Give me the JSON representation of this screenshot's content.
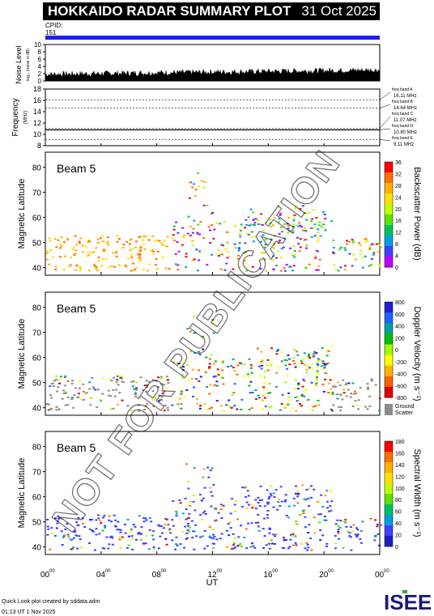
{
  "header": {
    "title": "HOKKAIDO RADAR SUMMARY PLOT",
    "date": "31 Oct 2025",
    "cpid_label": "CPID:",
    "cpid_value": "151"
  },
  "colors": {
    "cpid_bar": "#1f1ff0",
    "ground_scatter": "#8c8c8c",
    "watermark": "rgba(0,0,0,0.55)"
  },
  "noise_panel": {
    "ylabel": "Noise Level",
    "ysub": "log₁₀ (noise in dB)",
    "yticks": [
      "10",
      "8",
      "6",
      "4",
      "2",
      "0"
    ],
    "ylim": [
      0,
      10
    ]
  },
  "freq_panel": {
    "ylabel": "Frequency",
    "yunit": "(MHz)",
    "yticks": [
      "18",
      "16",
      "14",
      "12",
      "10",
      "8"
    ],
    "ylim": [
      8,
      18
    ],
    "bands": [
      {
        "label": "freq band A",
        "value": "16.11 MHz",
        "mhz": 16.11
      },
      {
        "label": "freq band B",
        "value": "14.64 MHz",
        "mhz": 14.64
      },
      {
        "label": "freq band C",
        "value": "11.07 MHz",
        "mhz": 11.07
      },
      {
        "label": "freq band D",
        "value": "10.80 MHz",
        "mhz": 10.8
      },
      {
        "label": "freq band E",
        "value": "9.11 MHz",
        "mhz": 9.11
      }
    ]
  },
  "panels": [
    {
      "beam_label": "Beam  5",
      "ylabel": "Magnetic Latitude",
      "yticks": [
        "80",
        "70",
        "60",
        "50",
        "40"
      ],
      "colorbar_label": "Backscatter Power (dB)",
      "colorbar_ticks": [
        "36",
        "32",
        "28",
        "24",
        "20",
        "16",
        "12",
        "8",
        "4",
        "0"
      ],
      "colorbar_colors": [
        "#ff0000",
        "#ff7000",
        "#ffb000",
        "#ffe000",
        "#c0ff00",
        "#60e000",
        "#00c060",
        "#00a0e0",
        "#4040ff",
        "#c000ff"
      ]
    },
    {
      "beam_label": "Beam  5",
      "ylabel": "Magnetic Latitude",
      "yticks": [
        "80",
        "70",
        "60",
        "50",
        "40"
      ],
      "colorbar_label": "Doppler Velocity (m s⁻¹)",
      "colorbar_ticks": [
        "800",
        "600",
        "400",
        "200",
        "0",
        "-200",
        "-400",
        "-600",
        "-800"
      ],
      "colorbar_colors": [
        "#2020d0",
        "#2060ff",
        "#00a0a0",
        "#00c000",
        "#a0ff00",
        "#ffff00",
        "#ffb000",
        "#ff6000",
        "#e00000"
      ],
      "ground_label": "Ground",
      "ground_sub": "Scatter"
    },
    {
      "beam_label": "Beam  5",
      "ylabel": "Magnetic Latitude",
      "yticks": [
        "80",
        "70",
        "60",
        "50",
        "40"
      ],
      "colorbar_label": "Spectral Width (m s⁻¹)",
      "colorbar_ticks": [
        "180",
        "160",
        "140",
        "120",
        "100",
        "80",
        "60",
        "40",
        "20",
        "0"
      ],
      "colorbar_colors": [
        "#ff0000",
        "#ff7000",
        "#ffb000",
        "#ffe000",
        "#c0ff00",
        "#60e000",
        "#00c060",
        "#00a0e0",
        "#4040ff",
        "#2020c0"
      ]
    }
  ],
  "xaxis": {
    "label": "UT",
    "ticks": [
      "00",
      "04",
      "08",
      "12",
      "16",
      "20",
      "00"
    ],
    "tick_sup": "00"
  },
  "watermark": "NOT FOR PUBLICATION",
  "footer": {
    "credit": "Quick Look plot created by sddata.adm",
    "timestamp": "01:13 UT  1 Nov 2025",
    "logo": "ISEE"
  },
  "chart_data": [
    {
      "type": "line",
      "title": "Noise Level",
      "ylabel": "Noise Level",
      "ylim": [
        0,
        10
      ],
      "x": [
        0,
        4,
        8,
        12,
        16,
        20,
        24
      ],
      "xlabel": "UT",
      "series": [
        {
          "values": [
            1.2,
            1.0,
            1.3,
            1.5,
            1.6,
            1.7,
            1.9
          ]
        }
      ]
    },
    {
      "type": "line",
      "title": "Frequency",
      "ylabel": "Frequency (MHz)",
      "ylim": [
        8,
        18
      ],
      "series": [
        {
          "values": [
            10.8,
            10.8,
            10.8,
            10.8,
            10.8,
            10.8,
            10.8
          ]
        }
      ]
    },
    {
      "type": "heatmap",
      "title": "Backscatter Power (dB)",
      "xlabel": "UT",
      "ylabel": "Magnetic Latitude",
      "xlim": [
        0,
        24
      ],
      "ylim": [
        37,
        86
      ],
      "zlim": [
        0,
        36
      ]
    },
    {
      "type": "heatmap",
      "title": "Doppler Velocity (m s⁻¹)",
      "xlabel": "UT",
      "ylabel": "Magnetic Latitude",
      "xlim": [
        0,
        24
      ],
      "ylim": [
        37,
        86
      ],
      "zlim": [
        -800,
        800
      ]
    },
    {
      "type": "heatmap",
      "title": "Spectral Width (m s⁻¹)",
      "xlabel": "UT",
      "ylabel": "Magnetic Latitude",
      "xlim": [
        0,
        24
      ],
      "ylim": [
        37,
        86
      ],
      "zlim": [
        0,
        180
      ]
    }
  ]
}
